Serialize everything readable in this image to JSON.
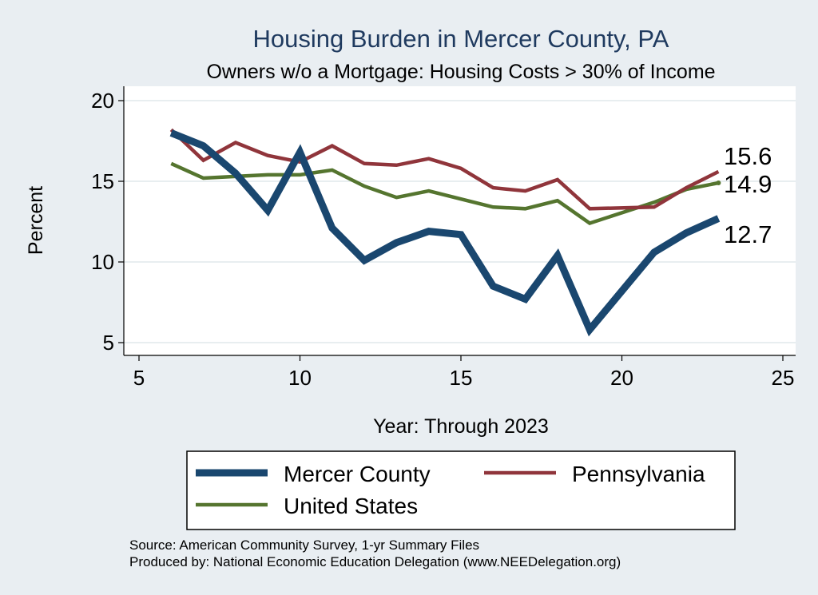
{
  "chart_data": {
    "type": "line",
    "title": "Housing Burden in Mercer County, PA",
    "subtitle": "Owners w/o a Mortgage: Housing Costs > 30% of Income",
    "xlabel": "Year: Through 2023",
    "ylabel": "Percent",
    "xlim": [
      5,
      25
    ],
    "ylim": [
      5,
      20
    ],
    "xticks": [
      5,
      10,
      15,
      20,
      25
    ],
    "yticks": [
      5,
      10,
      15,
      20
    ],
    "grid": true,
    "legend_position": "bottom",
    "series": [
      {
        "name": "Mercer County",
        "color": "#1a476f",
        "x": [
          6,
          7,
          8,
          9,
          10,
          11,
          12,
          13,
          14,
          15,
          16,
          17,
          18,
          19,
          21,
          22,
          23
        ],
        "y": [
          18.0,
          17.2,
          15.5,
          13.2,
          16.8,
          12.1,
          10.1,
          11.2,
          11.9,
          11.7,
          8.5,
          7.7,
          10.4,
          5.8,
          10.6,
          11.8,
          12.7
        ],
        "end_label": "12.7"
      },
      {
        "name": "Pennsylvania",
        "color": "#90353b",
        "x": [
          6,
          7,
          8,
          9,
          10,
          11,
          12,
          13,
          14,
          15,
          16,
          17,
          18,
          19,
          21,
          22,
          23
        ],
        "y": [
          18.2,
          16.3,
          17.4,
          16.6,
          16.2,
          17.2,
          16.1,
          16.0,
          16.4,
          15.8,
          14.6,
          14.4,
          15.1,
          13.3,
          13.4,
          14.6,
          15.6
        ],
        "end_label": "15.6"
      },
      {
        "name": "United States",
        "color": "#55752f",
        "x": [
          6,
          7,
          8,
          9,
          10,
          11,
          12,
          13,
          14,
          15,
          16,
          17,
          18,
          19,
          21,
          22,
          23
        ],
        "y": [
          16.1,
          15.2,
          15.3,
          15.4,
          15.4,
          15.7,
          14.7,
          14.0,
          14.4,
          13.9,
          13.4,
          13.3,
          13.8,
          12.4,
          13.7,
          14.5,
          14.9
        ],
        "end_label": "14.9"
      }
    ]
  },
  "footer": {
    "source": "Source: American Community Survey, 1-yr Summary Files",
    "produced_by": "Produced by: National Economic Education Delegation (www.NEEDelegation.org)"
  }
}
